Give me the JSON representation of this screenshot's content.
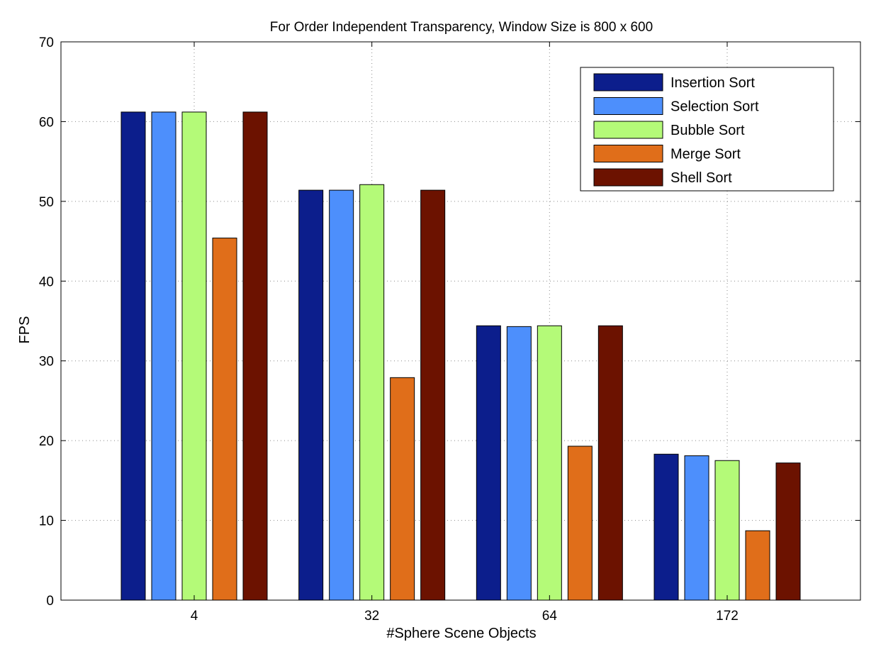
{
  "chart_data": {
    "type": "bar",
    "title": "For Order Independent Transparency, Window Size is 800 x 600",
    "xlabel": "#Sphere Scene Objects",
    "ylabel": "FPS",
    "categories": [
      "4",
      "32",
      "64",
      "172"
    ],
    "ylim": [
      0,
      70
    ],
    "yticks": [
      "0",
      "10",
      "20",
      "30",
      "40",
      "50",
      "60",
      "70"
    ],
    "grid": true,
    "legend_position": "top-right",
    "series": [
      {
        "name": "Insertion Sort",
        "color": "#0c1e8c",
        "values": [
          61.2,
          51.4,
          34.4,
          18.3
        ]
      },
      {
        "name": "Selection Sort",
        "color": "#4d8ffc",
        "values": [
          61.2,
          51.4,
          34.3,
          18.1
        ]
      },
      {
        "name": "Bubble Sort",
        "color": "#b4fa78",
        "values": [
          61.2,
          52.1,
          34.4,
          17.5
        ]
      },
      {
        "name": "Merge Sort",
        "color": "#e06e1a",
        "values": [
          45.4,
          27.9,
          19.3,
          8.7
        ]
      },
      {
        "name": "Shell Sort",
        "color": "#6c1200",
        "values": [
          61.2,
          51.4,
          34.4,
          17.2
        ]
      }
    ]
  }
}
